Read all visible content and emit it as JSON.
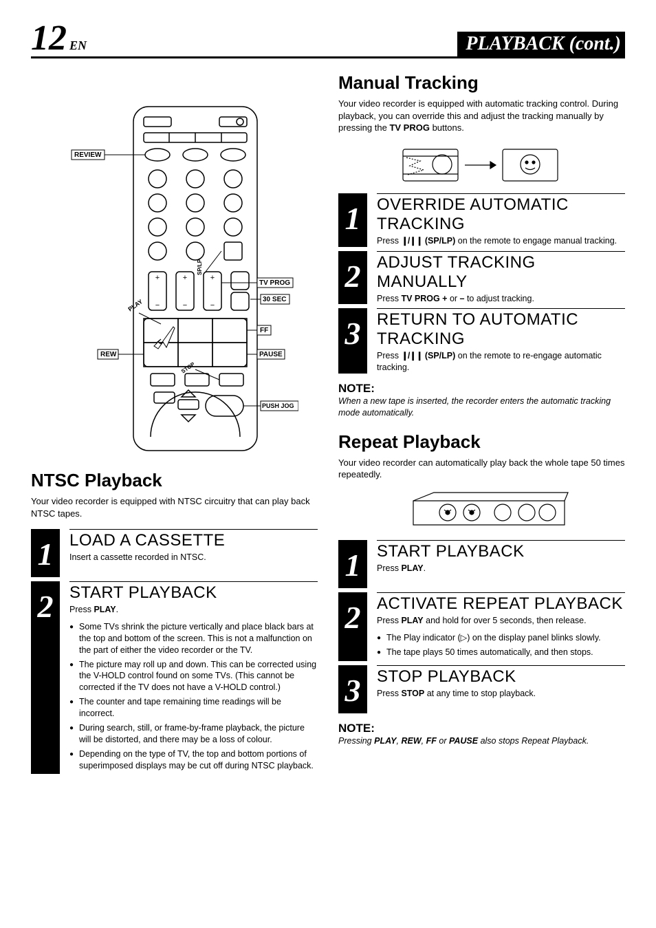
{
  "header": {
    "page_number": "12",
    "lang": "EN",
    "title": "PLAYBACK (cont.)"
  },
  "left": {
    "remote": {
      "labels": {
        "review": "REVIEW",
        "splp": "SP/LP",
        "tvprog": "TV PROG",
        "thirtysec": "30 SEC",
        "play": "PLAY",
        "ff": "FF",
        "rew": "REW",
        "pause": "PAUSE",
        "stop": "STOP",
        "pushjog": "PUSH JOG"
      },
      "stroke": "#000000",
      "fill": "#ffffff"
    },
    "ntsc": {
      "heading": "NTSC Playback",
      "intro": "Your video recorder is equipped with NTSC circuitry that can play back NTSC tapes.",
      "steps": [
        {
          "num": "1",
          "title": "LOAD A CASSETTE",
          "text": "Insert a cassette recorded in NTSC."
        },
        {
          "num": "2",
          "title": "START PLAYBACK",
          "text_pre": "Press ",
          "text_b": "PLAY",
          "text_post": ".",
          "bullets": [
            "Some TVs shrink the picture vertically and place black bars at the top and bottom of the screen. This is not a malfunction on the part of either the video recorder or the TV.",
            "The picture may roll up and down. This can be corrected using the V-HOLD control found on some TVs. (This cannot be corrected if the TV does not have a V-HOLD control.)",
            "The counter and tape remaining time readings will be incorrect.",
            "During search, still, or frame-by-frame playback, the picture will be distorted, and there may be a loss of colour.",
            "Depending on the type of TV, the top and bottom portions of superimposed displays may be cut off during NTSC playback."
          ]
        }
      ]
    }
  },
  "right": {
    "manual": {
      "heading": "Manual Tracking",
      "intro_pre": "Your video recorder is equipped with automatic tracking control. During playback, you can override this and adjust the tracking manually by pressing the ",
      "intro_b": "TV PROG",
      "intro_post": " buttons.",
      "steps": [
        {
          "num": "1",
          "title": "OVERRIDE AUTOMATIC TRACKING",
          "html": "Press <span class=\"splp-icon\">❙/❙❙</span> <b>(SP/LP)</b> on the remote to engage manual tracking."
        },
        {
          "num": "2",
          "title": "ADJUST TRACKING MANUALLY",
          "html": "Press <b>TV PROG +</b> or <b>–</b> to adjust tracking."
        },
        {
          "num": "3",
          "title": "RETURN TO AUTOMATIC TRACKING",
          "html": "Press <span class=\"splp-icon\">❙/❙❙</span> <b>(SP/LP)</b> on the remote to re-engage automatic tracking."
        }
      ],
      "note_label": "NOTE:",
      "note_text": "When a new tape is inserted, the recorder enters the automatic tracking mode automatically."
    },
    "repeat": {
      "heading": "Repeat Playback",
      "intro": "Your video recorder can automatically play back the whole tape 50 times repeatedly.",
      "steps": [
        {
          "num": "1",
          "title": "START PLAYBACK",
          "html": "Press <b>PLAY</b>."
        },
        {
          "num": "2",
          "title": "ACTIVATE REPEAT PLAYBACK",
          "html": "Press <b>PLAY</b> and hold for over 5 seconds, then release.",
          "bullets": [
            "The Play indicator (▷) on the display panel blinks slowly.",
            "The tape plays 50 times automatically, and then stops."
          ]
        },
        {
          "num": "3",
          "title": "STOP PLAYBACK",
          "html": "Press <b>STOP</b> at any time to stop playback."
        }
      ],
      "note_label": "NOTE:",
      "note_html": "Pressing <b>PLAY</b>, <b>REW</b>, <b>FF</b> or <b>PAUSE</b> also stops Repeat Playback."
    }
  }
}
